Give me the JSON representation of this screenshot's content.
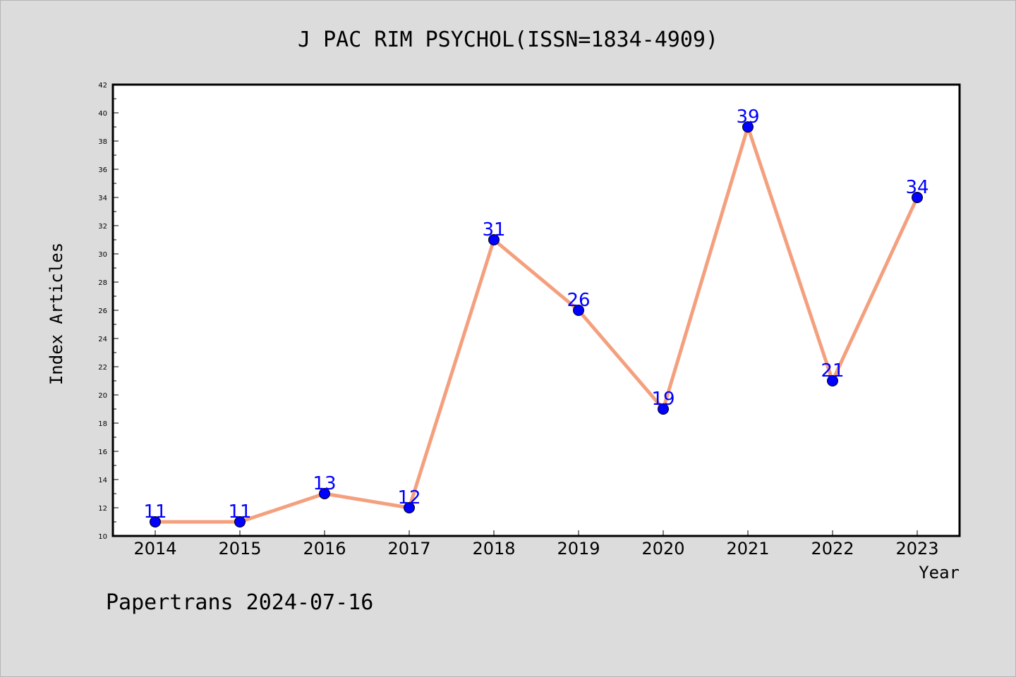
{
  "chart_data": {
    "type": "line",
    "title": "J PAC RIM PSYCHOL(ISSN=1834-4909)",
    "xlabel": "Year",
    "ylabel": "Index Articles",
    "categories": [
      "2014",
      "2015",
      "2016",
      "2017",
      "2018",
      "2019",
      "2020",
      "2021",
      "2022",
      "2023"
    ],
    "values": [
      11,
      11,
      13,
      12,
      31,
      26,
      19,
      39,
      21,
      34
    ],
    "ylim": [
      10,
      42
    ],
    "yticks": [
      "10",
      "12",
      "14",
      "16",
      "18",
      "20",
      "22",
      "24",
      "26",
      "28",
      "30",
      "32",
      "34",
      "36",
      "38",
      "40",
      "42"
    ],
    "grid": false,
    "line_color": "#f4a07e",
    "marker_color": "#0000ff",
    "label_color": "#0000ff"
  },
  "footer": {
    "text": "Papertrans 2024-07-16"
  }
}
